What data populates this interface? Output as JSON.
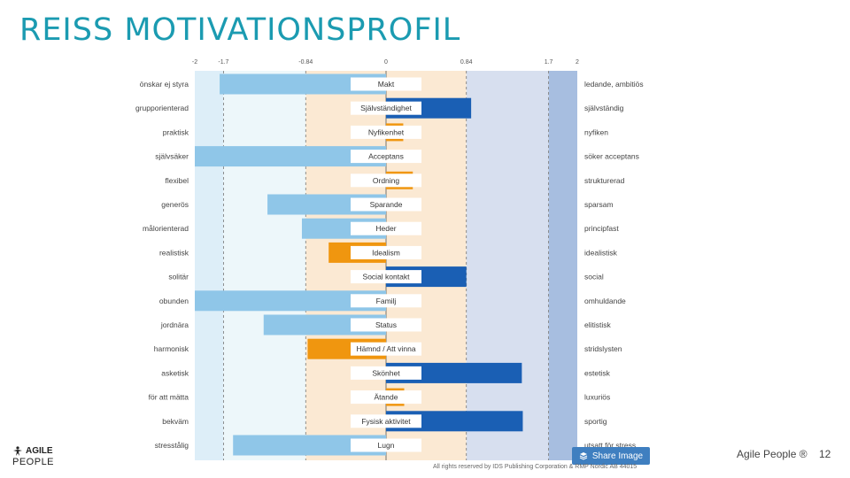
{
  "header": {
    "title": "REISS MOTIVATIONSPROFIL"
  },
  "chart_data": {
    "type": "bar",
    "orientation": "horizontal-diverging",
    "xlim": [
      -2,
      2
    ],
    "ticks": [
      "-2",
      "-1.7",
      "-0.84",
      "0",
      "0.84",
      "1.7",
      "2"
    ],
    "tick_values": [
      -2,
      -1.7,
      -0.84,
      0,
      0.84,
      1.7,
      2
    ],
    "rows": [
      {
        "center": "Makt",
        "left": "önskar ej styra",
        "right": "ledande, ambitiös",
        "value": -1.74,
        "color": "lightblue"
      },
      {
        "center": "Självständighet",
        "left": "grupporienterad",
        "right": "självständig",
        "value": 0.89,
        "color": "darkblue"
      },
      {
        "center": "Nyfikenhet",
        "left": "praktisk",
        "right": "nyfiken",
        "value": 0.18,
        "color": "orange"
      },
      {
        "center": "Acceptans",
        "left": "självsäker",
        "right": "söker acceptans",
        "value": -2.0,
        "color": "lightblue"
      },
      {
        "center": "Ordning",
        "left": "flexibel",
        "right": "strukturerad",
        "value": 0.28,
        "color": "orange"
      },
      {
        "center": "Sparande",
        "left": "generös",
        "right": "sparsam",
        "value": -1.24,
        "color": "lightblue"
      },
      {
        "center": "Heder",
        "left": "målorienterad",
        "right": "principfast",
        "value": -0.88,
        "color": "lightblue"
      },
      {
        "center": "Idealism",
        "left": "realistisk",
        "right": "idealistisk",
        "value": -0.6,
        "color": "orange"
      },
      {
        "center": "Social kontakt",
        "left": "solitär",
        "right": "social",
        "value": 0.84,
        "color": "darkblue"
      },
      {
        "center": "Familj",
        "left": "obunden",
        "right": "omhuldande",
        "value": -2.0,
        "color": "lightblue"
      },
      {
        "center": "Status",
        "left": "jordnära",
        "right": "elitistisk",
        "value": -1.28,
        "color": "lightblue"
      },
      {
        "center": "Hämnd / Att vinna",
        "left": "harmonisk",
        "right": "stridslysten",
        "value": -0.82,
        "color": "orange"
      },
      {
        "center": "Skönhet",
        "left": "asketisk",
        "right": "estetisk",
        "value": 1.42,
        "color": "darkblue"
      },
      {
        "center": "Ätande",
        "left": "för att mätta",
        "right": "luxuriös",
        "value": 0.19,
        "color": "orange"
      },
      {
        "center": "Fysisk aktivitet",
        "left": "bekväm",
        "right": "sportig",
        "value": 1.43,
        "color": "darkblue"
      },
      {
        "center": "Lugn",
        "left": "stresstålig",
        "right": "utsatt för stress",
        "value": -1.6,
        "color": "lightblue"
      }
    ],
    "colors": {
      "lightblue": "#8fc6e8",
      "darkblue": "#1a5fb4",
      "orange": "#f0960f",
      "zone_outer_left": "#ddeef8",
      "zone_mid_left": "#edf7fa",
      "zone_center": "#fbe9d3",
      "zone_mid_right": "#d7dfef",
      "zone_outer_right": "#a7bee0"
    }
  },
  "logo": {
    "line1": "AGILE",
    "line2": "PEOPLE"
  },
  "footer": {
    "brand": "Agile People ®",
    "page": "12",
    "share_label": "Share Image",
    "copyright": "All rights reserved by IDS Publishing Corporation & RMP Nordic AB 44015"
  }
}
